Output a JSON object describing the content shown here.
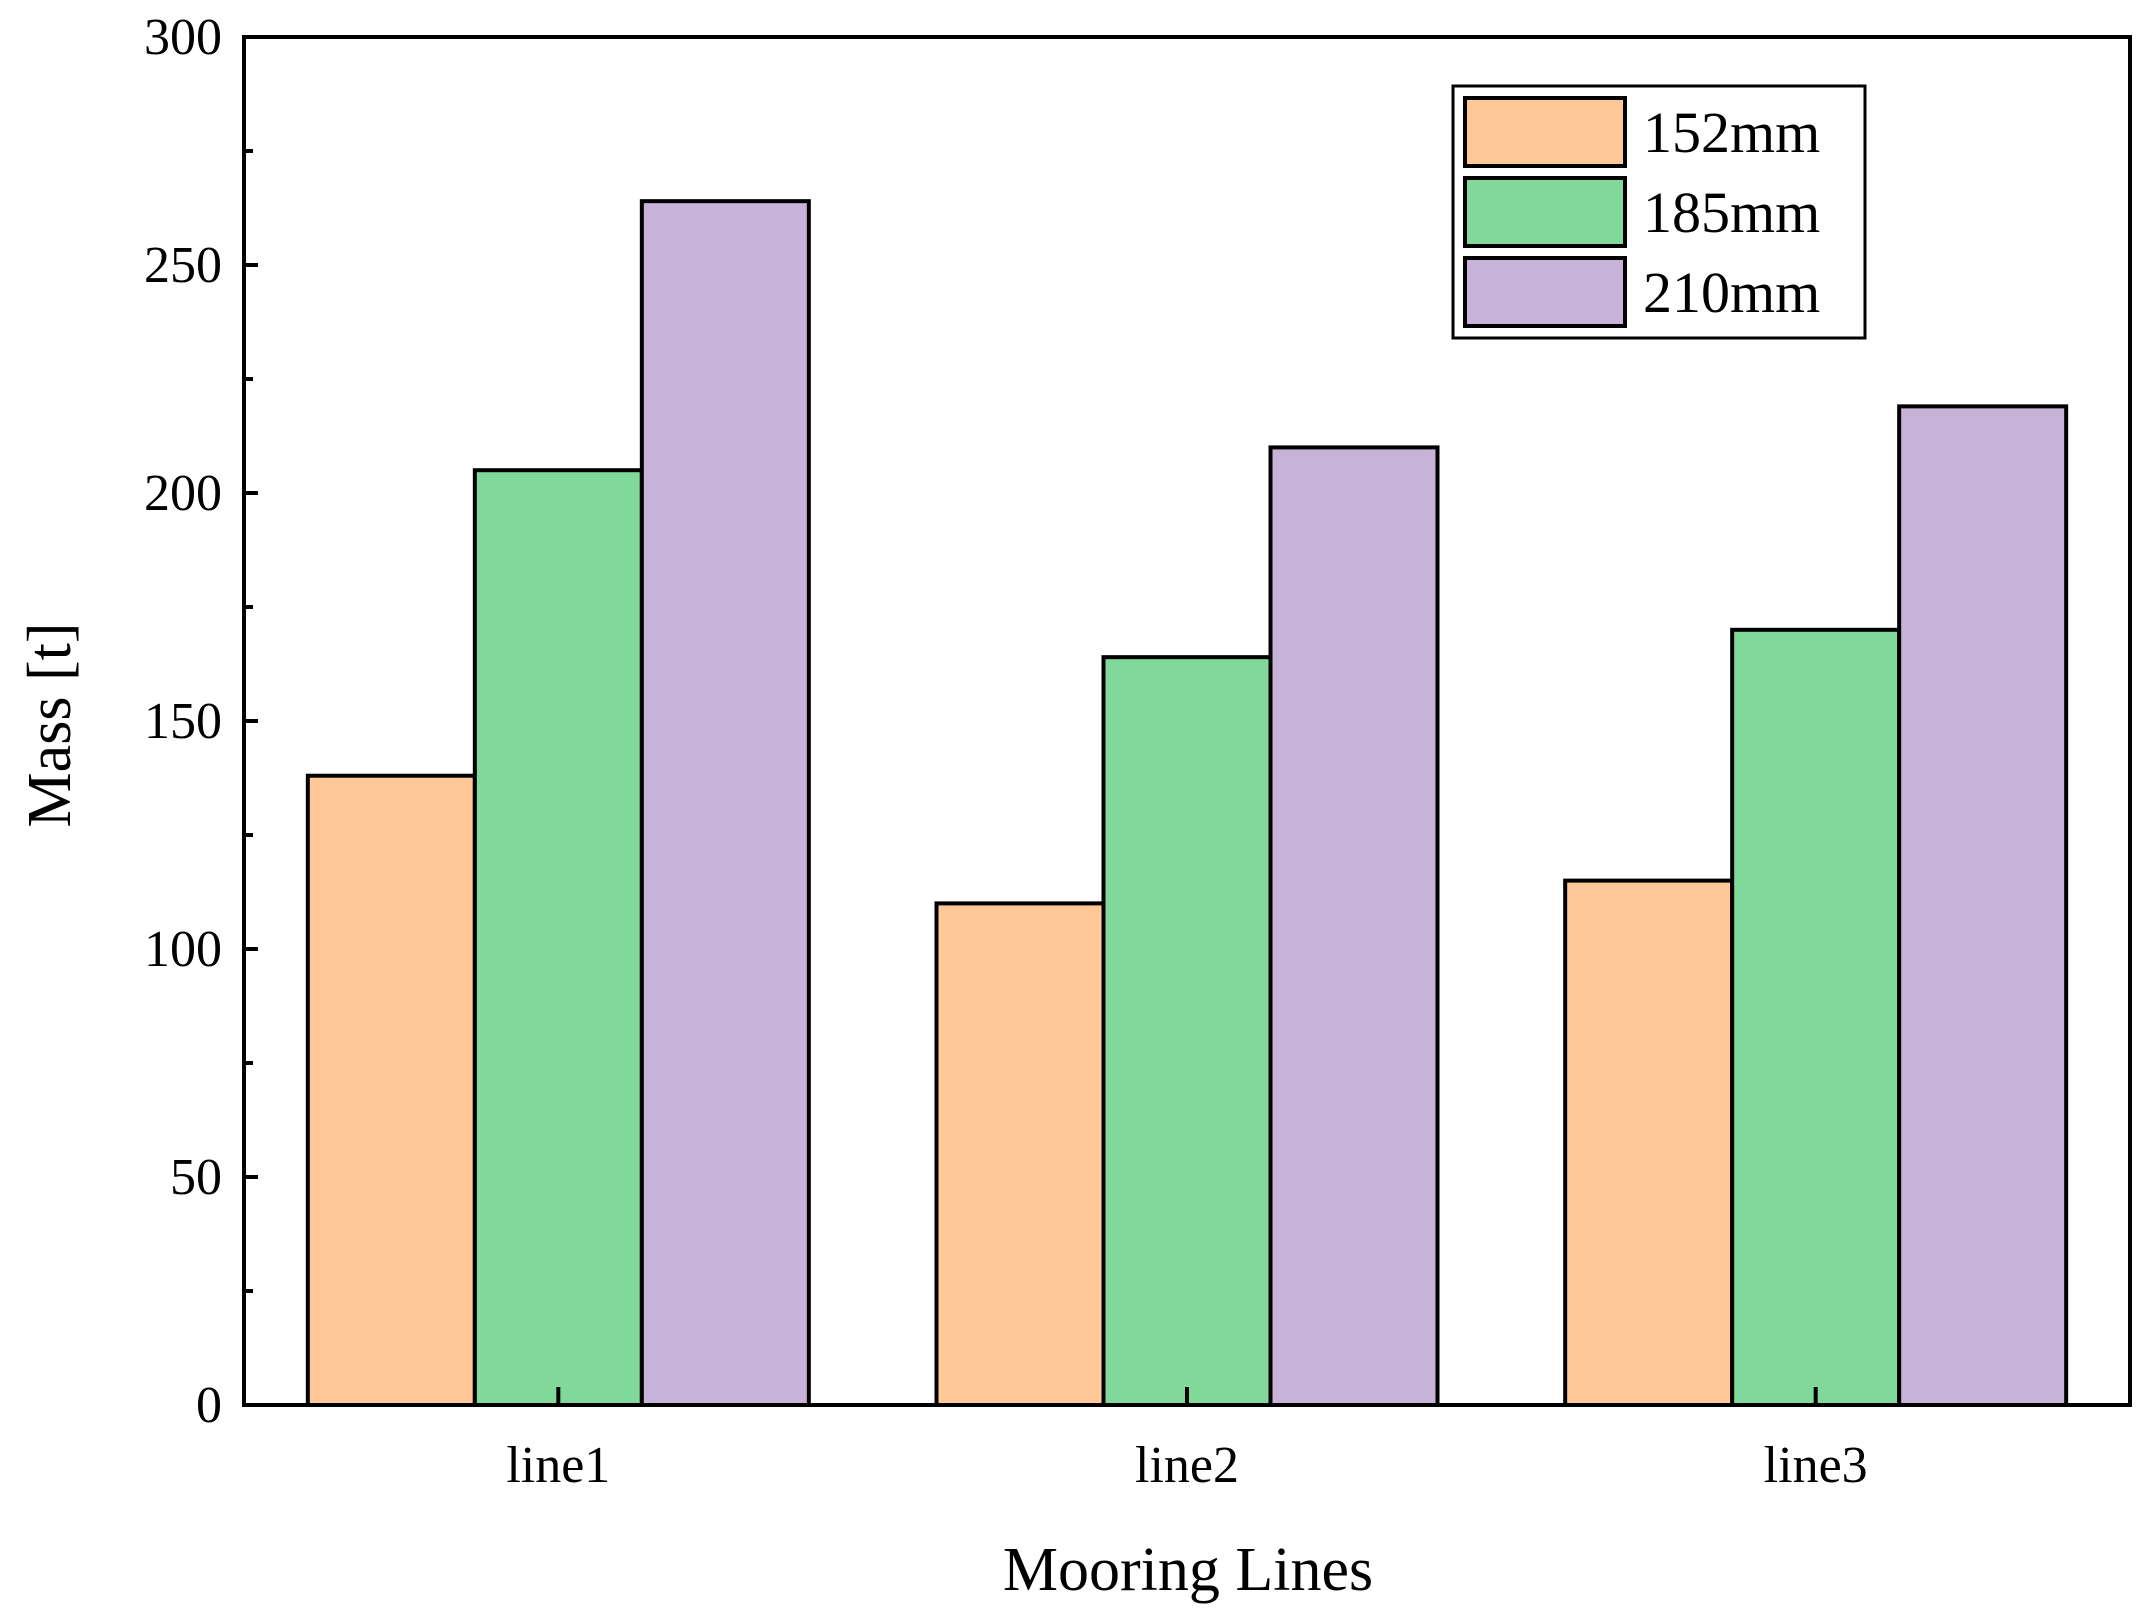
{
  "chart_data": {
    "type": "bar",
    "xlabel": "Mooring Lines",
    "ylabel": "Mass [t]",
    "categories": [
      "line1",
      "line2",
      "line3"
    ],
    "ylim": [
      0,
      300
    ],
    "yticks": [
      "0",
      "50",
      "100",
      "150",
      "200",
      "250",
      "300"
    ],
    "series": [
      {
        "name": "152mm",
        "color": "#FFC896",
        "values": [
          138,
          110,
          115
        ]
      },
      {
        "name": "185mm",
        "color": "#80D99A",
        "values": [
          205,
          164,
          170
        ]
      },
      {
        "name": "210mm",
        "color": "#C8B3D8",
        "values": [
          264,
          210,
          219
        ]
      }
    ],
    "legend_position": "top-right",
    "grid": false
  }
}
